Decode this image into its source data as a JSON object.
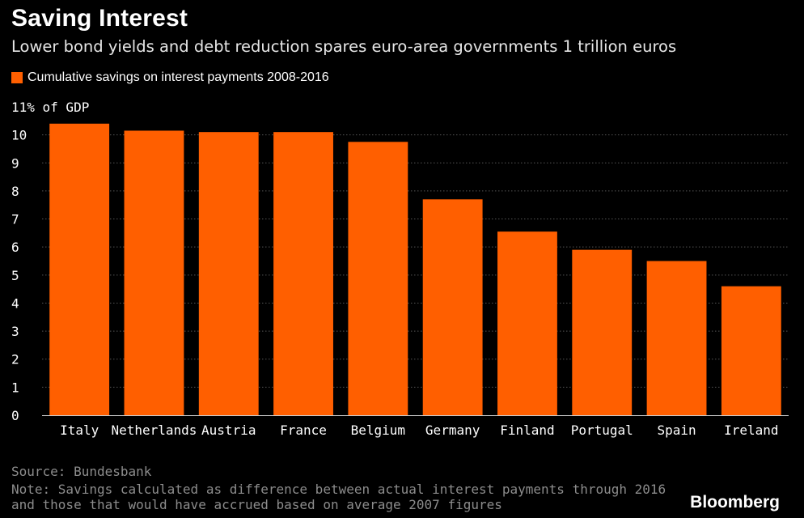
{
  "header": {
    "title": "Saving Interest",
    "subtitle": "Lower bond yields and debt reduction spares euro-area governments 1 trillion euros"
  },
  "legend": {
    "label": "Cumulative savings on interest payments 2008-2016"
  },
  "colors": {
    "bar": "#ff5f00",
    "background": "#000000",
    "grid": "#555555",
    "muted_text": "#8c8c8c"
  },
  "chart_data": {
    "type": "bar",
    "title": "Saving Interest",
    "ylabel": "% of GDP",
    "top_tick_label": "11% of GDP",
    "ylim": [
      0,
      11
    ],
    "yticks": [
      0,
      1,
      2,
      3,
      4,
      5,
      6,
      7,
      8,
      9,
      10
    ],
    "categories": [
      "Italy",
      "Netherlands",
      "Austria",
      "France",
      "Belgium",
      "Germany",
      "Finland",
      "Portugal",
      "Spain",
      "Ireland"
    ],
    "series": [
      {
        "name": "Cumulative savings on interest payments 2008-2016",
        "values": [
          10.4,
          10.15,
          10.1,
          10.1,
          9.75,
          7.7,
          6.55,
          5.9,
          5.5,
          4.6
        ]
      }
    ],
    "grid": true,
    "legend": "top-left"
  },
  "footer": {
    "source": "Source: Bundesbank",
    "note": "Note: Savings calculated as difference between actual interest payments through 2016 and those that would have accrued based on average 2007 figures",
    "brand": "Bloomberg"
  }
}
